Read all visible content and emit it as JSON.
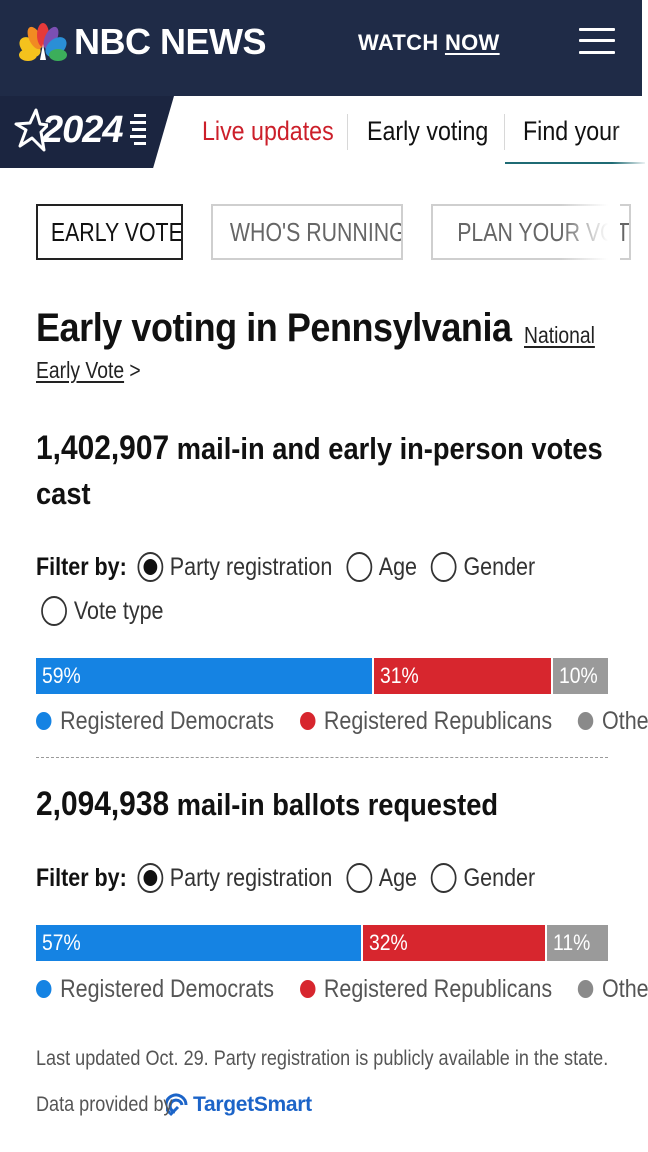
{
  "header": {
    "brand": "NBC NEWS",
    "watch_label": "WATCH",
    "now_label": "NOW"
  },
  "election_nav": {
    "badge": "2024",
    "links": [
      {
        "label": "Live updates",
        "color": "#cc1f2a"
      },
      {
        "label": "Early voting"
      },
      {
        "label": "Find your"
      }
    ]
  },
  "tabs": [
    {
      "label": "EARLY VOTE",
      "active": true
    },
    {
      "label": "WHO'S RUNNING",
      "active": false
    },
    {
      "label": "PLAN YOUR VOTE",
      "active": false
    }
  ],
  "page": {
    "title": "Early voting in Pennsylvania",
    "national_link_line1": "National",
    "national_link_line2": "Early Vote",
    "national_chevron": ">"
  },
  "legend": {
    "democrats": "Registered Democrats",
    "republicans": "Registered Republicans",
    "other": "Other"
  },
  "colors": {
    "democrat": "#1583e3",
    "republican": "#d7262e",
    "other": "#9a9a9a",
    "header_bg": "#1f2b47"
  },
  "filter": {
    "label": "Filter by:",
    "party": "Party registration",
    "age": "Age",
    "gender": "Gender",
    "vote_type": "Vote type"
  },
  "early_votes": {
    "count": "1,402,907",
    "text": "mail-in and early in-person votes cast",
    "democrats": "59%",
    "republicans": "31%",
    "other": "10%"
  },
  "mail_ballots": {
    "count": "2,094,938",
    "text": "mail-in ballots requested",
    "democrats": "57%",
    "republicans": "32%",
    "other": "11%"
  },
  "footer": {
    "updated": "Last updated Oct. 29. Party registration is publicly available in the state.",
    "provided_by": "Data provided by",
    "provider": "TargetSmart"
  }
}
